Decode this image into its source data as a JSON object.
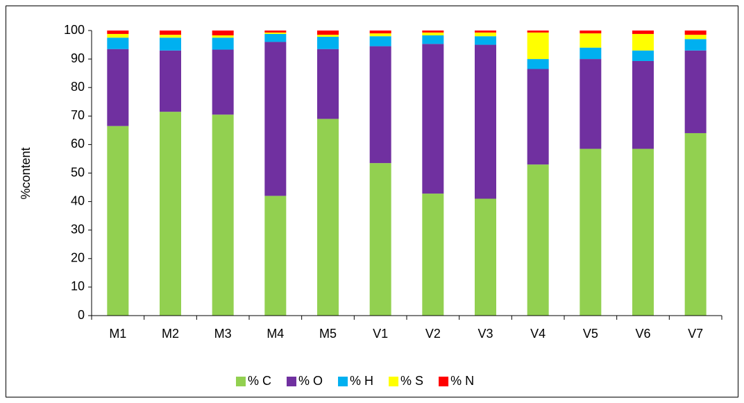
{
  "chart_data": {
    "type": "bar",
    "stacked": true,
    "y_label": "%content",
    "categories": [
      "M1",
      "M2",
      "M3",
      "M4",
      "M5",
      "V1",
      "V2",
      "V3",
      "V4",
      "V5",
      "V6",
      "V7"
    ],
    "series": [
      {
        "name": "% C",
        "color": "#92d050",
        "values": [
          66.5,
          71.5,
          70.5,
          42,
          69,
          53.5,
          42.8,
          41,
          53,
          58.5,
          58.5,
          64
        ]
      },
      {
        "name": "% O",
        "color": "#7030a0",
        "values": [
          27,
          21.5,
          22.8,
          54,
          24.5,
          41,
          52.5,
          54,
          33.5,
          31.5,
          30.8,
          29
        ]
      },
      {
        "name": "% H",
        "color": "#00b0f0",
        "values": [
          4,
          4.5,
          4.2,
          2.8,
          4.3,
          3.5,
          3,
          3,
          3.5,
          4,
          3.7,
          4
        ]
      },
      {
        "name": "% S",
        "color": "#ffff00",
        "values": [
          1.3,
          1,
          0.8,
          0.5,
          0.7,
          1,
          1,
          1.3,
          9.3,
          5,
          5.8,
          1.5
        ]
      },
      {
        "name": "% N",
        "color": "#ff0000",
        "values": [
          1.2,
          1.5,
          1.7,
          0.7,
          1.5,
          1,
          0.7,
          0.7,
          0.7,
          1,
          1.2,
          1.5
        ]
      }
    ],
    "ylim": [
      0,
      100
    ],
    "yticks": [
      0,
      10,
      20,
      30,
      40,
      50,
      60,
      70,
      80,
      90,
      100
    ],
    "grid": false,
    "legend": "bottom"
  }
}
